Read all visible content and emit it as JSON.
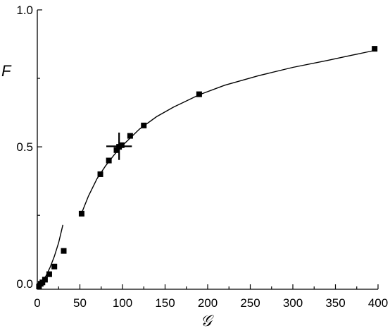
{
  "chart_data": {
    "type": "scatter",
    "xlabel": "𝒢",
    "ylabel": "F",
    "xlim": [
      0,
      400
    ],
    "ylim": [
      -0.02,
      1.0
    ],
    "x_ticks": [
      "0",
      "50",
      "100",
      "150",
      "200",
      "250",
      "300",
      "350",
      "400"
    ],
    "y_ticks": [
      "0.0",
      "0.5",
      "1.0"
    ],
    "grid": false,
    "legend": "none",
    "series": [
      {
        "kind": "points",
        "marker": "square",
        "color": "#000000",
        "x": [
          2,
          4,
          6,
          9,
          14,
          20,
          31,
          52,
          74,
          84,
          93,
          96,
          99,
          109,
          125,
          190,
          396
        ],
        "y": [
          -0.01,
          0.0,
          0.005,
          0.015,
          0.035,
          0.063,
          0.12,
          0.256,
          0.4,
          0.45,
          0.488,
          0.5,
          0.506,
          0.54,
          0.578,
          0.692,
          0.858
        ]
      },
      {
        "kind": "line",
        "color": "#000000",
        "x": [
          0,
          5,
          10,
          15,
          20,
          25,
          30
        ],
        "y": [
          0.0,
          0.008,
          0.028,
          0.06,
          0.1,
          0.15,
          0.215
        ]
      },
      {
        "kind": "line",
        "color": "#000000",
        "x": [
          52,
          60,
          70,
          80,
          90,
          100,
          120,
          140,
          160,
          190,
          220,
          260,
          300,
          340,
          370,
          396
        ],
        "y": [
          0.258,
          0.32,
          0.383,
          0.43,
          0.47,
          0.505,
          0.565,
          0.61,
          0.645,
          0.69,
          0.725,
          0.76,
          0.79,
          0.815,
          0.835,
          0.852
        ]
      }
    ],
    "error_cross": {
      "x": 96,
      "y": 0.502,
      "x_err": 15,
      "y_err": 0.05
    }
  }
}
